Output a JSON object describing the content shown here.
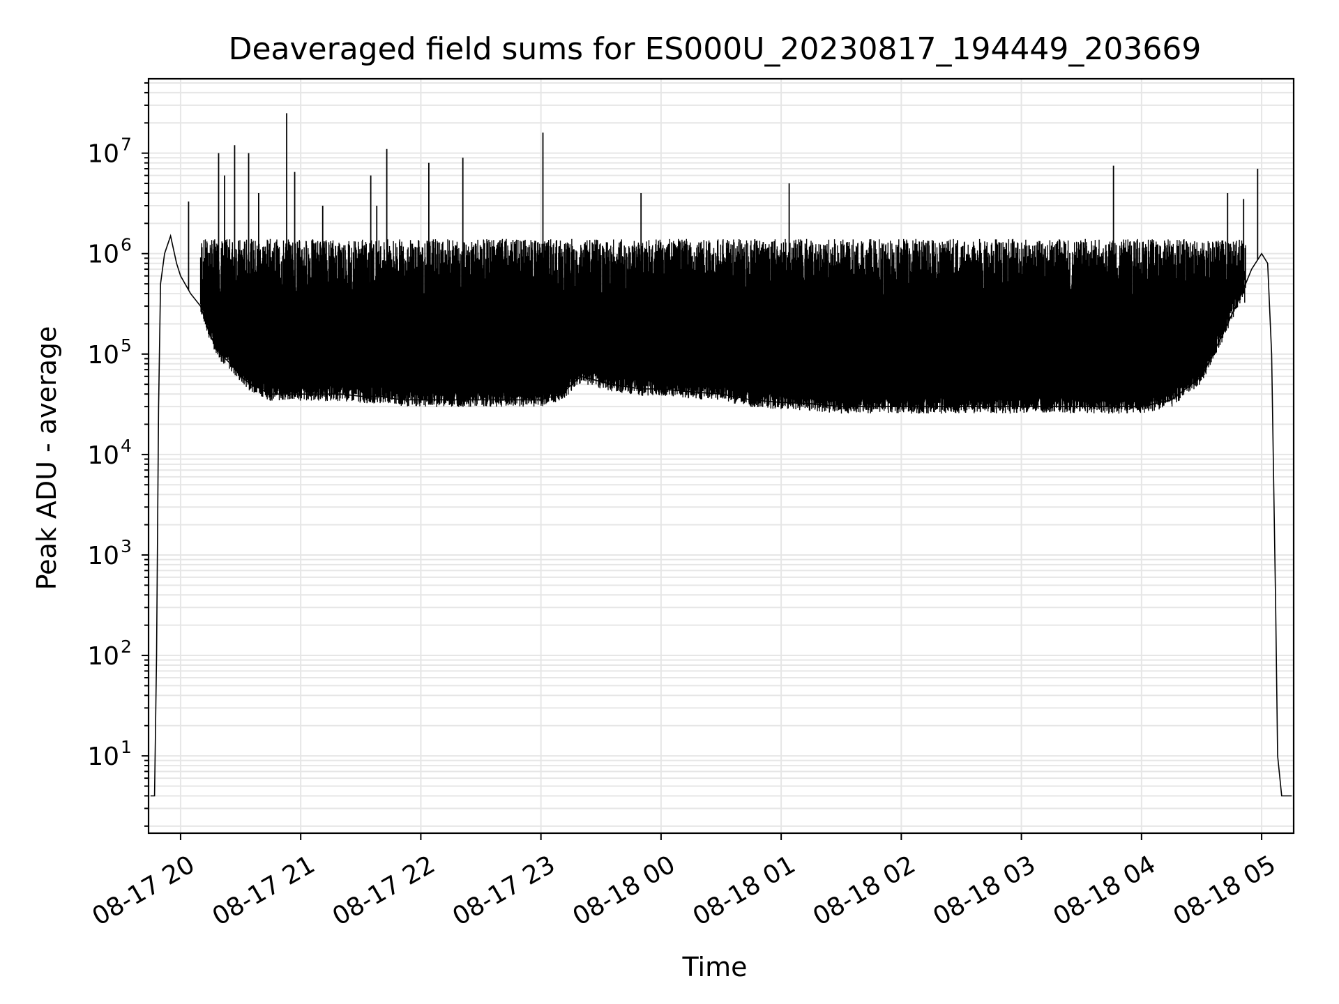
{
  "chart_data": {
    "type": "line",
    "title": "Deaveraged field sums for ES000U_20230817_194449_203669",
    "xlabel": "Time",
    "ylabel": "Peak ADU - average",
    "y_scale": "log",
    "ylim": [
      1.7,
      55000000
    ],
    "xlim": [
      "2023-08-17 19:44",
      "2023-08-18 05:16"
    ],
    "grid": true,
    "line_color": "#000000",
    "grid_color": "#e6e6e6",
    "x_ticks": [
      "08-17 20",
      "08-17 21",
      "08-17 22",
      "08-17 23",
      "08-18 00",
      "08-18 01",
      "08-18 02",
      "08-18 03",
      "08-18 04",
      "08-18 05"
    ],
    "y_ticks": [
      {
        "base": "10",
        "exp": "1",
        "value": 10
      },
      {
        "base": "10",
        "exp": "2",
        "value": 100
      },
      {
        "base": "10",
        "exp": "3",
        "value": 1000
      },
      {
        "base": "10",
        "exp": "4",
        "value": 10000
      },
      {
        "base": "10",
        "exp": "5",
        "value": 100000
      },
      {
        "base": "10",
        "exp": "6",
        "value": 1000000
      },
      {
        "base": "10",
        "exp": "7",
        "value": 10000000
      }
    ],
    "series": [
      {
        "x": [
          "2023-08-17 19:45",
          "2023-08-17 19:47",
          "2023-08-17 19:48",
          "2023-08-17 19:49",
          "2023-08-17 19:50",
          "2023-08-17 19:52",
          "2023-08-17 19:55",
          "2023-08-17 19:58",
          "2023-08-17 20:00",
          "2023-08-17 20:05",
          "2023-08-17 20:10",
          "2023-08-17 20:15",
          "2023-08-17 20:20",
          "2023-08-17 20:25",
          "2023-08-17 20:30",
          "2023-08-17 20:35",
          "2023-08-17 20:40",
          "2023-08-17 20:45",
          "2023-08-17 20:50",
          "2023-08-17 20:55",
          "2023-08-17 21:00",
          "2023-08-17 21:10",
          "2023-08-17 21:20",
          "2023-08-17 21:30",
          "2023-08-17 21:40",
          "2023-08-17 21:50",
          "2023-08-17 22:00",
          "2023-08-17 22:15",
          "2023-08-17 22:30",
          "2023-08-17 22:45",
          "2023-08-17 23:00",
          "2023-08-17 23:10",
          "2023-08-17 23:20",
          "2023-08-17 23:35",
          "2023-08-17 23:50",
          "2023-08-18 00:00",
          "2023-08-18 00:15",
          "2023-08-18 00:30",
          "2023-08-18 00:45",
          "2023-08-18 01:00",
          "2023-08-18 01:15",
          "2023-08-18 01:30",
          "2023-08-18 01:45",
          "2023-08-18 02:00",
          "2023-08-18 02:15",
          "2023-08-18 02:30",
          "2023-08-18 02:45",
          "2023-08-18 03:00",
          "2023-08-18 03:15",
          "2023-08-18 03:30",
          "2023-08-18 03:45",
          "2023-08-18 04:00",
          "2023-08-18 04:15",
          "2023-08-18 04:30",
          "2023-08-18 04:40",
          "2023-08-18 04:50",
          "2023-08-18 04:55",
          "2023-08-18 05:00",
          "2023-08-18 05:03",
          "2023-08-18 05:05",
          "2023-08-18 05:07",
          "2023-08-18 05:08",
          "2023-08-18 05:10",
          "2023-08-18 05:15"
        ],
        "values": [
          4,
          4,
          100,
          30000,
          500000,
          1000000,
          1500000,
          800000,
          600000,
          400000,
          300000,
          150000,
          100000,
          80000,
          60000,
          50000,
          45000,
          40000,
          40000,
          40000,
          40000,
          40000,
          40000,
          38000,
          38000,
          35000,
          35000,
          35000,
          35000,
          35000,
          35000,
          40000,
          60000,
          50000,
          45000,
          45000,
          42000,
          40000,
          35000,
          33000,
          32000,
          30000,
          30000,
          30000,
          30000,
          30000,
          30000,
          30000,
          30000,
          30000,
          30000,
          30000,
          35000,
          60000,
          150000,
          400000,
          700000,
          1000000,
          800000,
          100000,
          300,
          10,
          4,
          4
        ]
      }
    ],
    "spikes": {
      "x": [
        "2023-08-17 20:04",
        "2023-08-17 20:19",
        "2023-08-17 20:22",
        "2023-08-17 20:27",
        "2023-08-17 20:34",
        "2023-08-17 20:39",
        "2023-08-17 20:53",
        "2023-08-17 20:57",
        "2023-08-17 21:11",
        "2023-08-17 21:35",
        "2023-08-17 21:38",
        "2023-08-17 21:43",
        "2023-08-17 22:04",
        "2023-08-17 22:21",
        "2023-08-17 23:01",
        "2023-08-17 23:50",
        "2023-08-18 01:04",
        "2023-08-18 03:46",
        "2023-08-18 04:43",
        "2023-08-18 04:51",
        "2023-08-18 04:58"
      ],
      "values": [
        3300000,
        10000000,
        6000000,
        12000000,
        10000000,
        4000000,
        25000000,
        6500000,
        3000000,
        6000000,
        3000000,
        11000000,
        8000000,
        9000000,
        16000000,
        4000000,
        5000000,
        7500000,
        4000000,
        3500000,
        7000000
      ]
    }
  }
}
